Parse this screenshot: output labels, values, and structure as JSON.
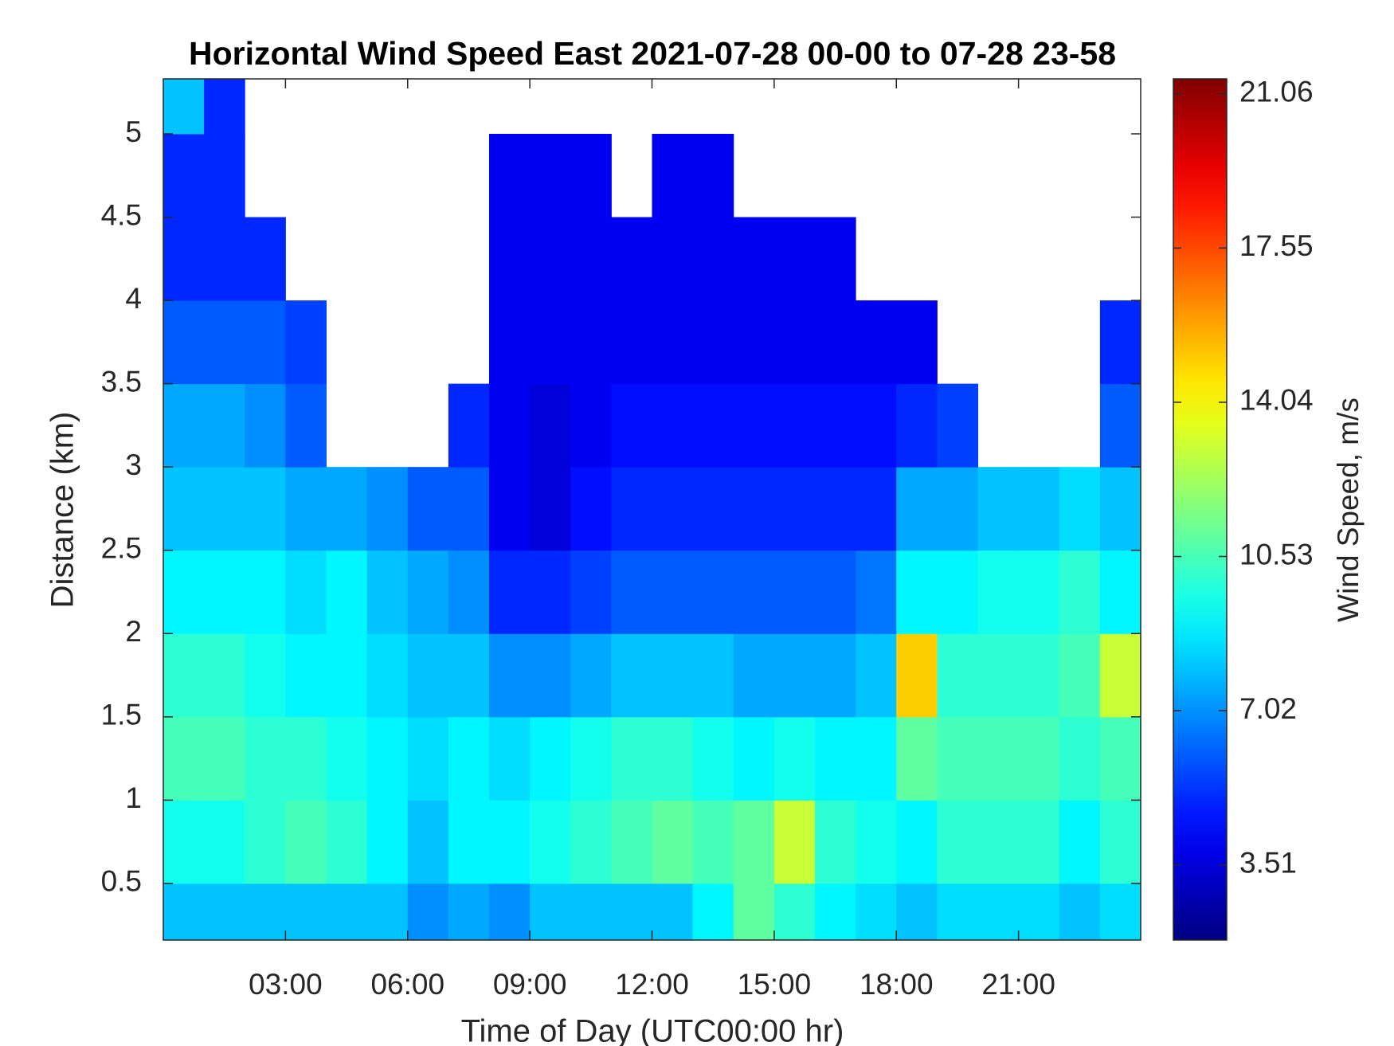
{
  "chart_data": {
    "type": "heatmap",
    "title": "Horizontal Wind Speed East 2021-07-28 00-00 to 07-28 23-58",
    "x_label": "Time of Day (UTC00:00 hr)",
    "y_label": "Distance (km)",
    "colorbar_label": "Wind Speed, m/s",
    "colormap": "jet",
    "x": [
      0.5,
      1.5,
      2.5,
      3.5,
      4.5,
      5.5,
      6.5,
      7.5,
      8.5,
      9.5,
      10.5,
      11.5,
      12.5,
      13.5,
      14.5,
      15.5,
      16.5,
      17.5,
      18.5,
      19.5,
      20.5,
      21.5,
      22.5,
      23.5
    ],
    "y": [
      0.25,
      0.75,
      1.25,
      1.75,
      2.25,
      2.75,
      3.25,
      3.75,
      4.25,
      4.75,
      5.25
    ],
    "values": [
      [
        8,
        8,
        8,
        8,
        8,
        8,
        7,
        7.5,
        7,
        8,
        8,
        8,
        8,
        9,
        11,
        10,
        9,
        8.5,
        8,
        8.5,
        8.5,
        8.5,
        8,
        8.5
      ],
      [
        9.5,
        9.5,
        10,
        10.5,
        10,
        9,
        8,
        9,
        9,
        9.5,
        10,
        10.5,
        11,
        10.5,
        11,
        13,
        10,
        9.5,
        9,
        10,
        10,
        10,
        9,
        10
      ],
      [
        10.5,
        10.5,
        10,
        10,
        9.5,
        9,
        8.5,
        9,
        8.5,
        9,
        9.5,
        10,
        10,
        9.5,
        9,
        9.5,
        9,
        9,
        11,
        10.5,
        10.5,
        10.5,
        10,
        10.5
      ],
      [
        10,
        10,
        9.5,
        9,
        9,
        8.5,
        8,
        8,
        7,
        7,
        7.5,
        8,
        8,
        8,
        7.5,
        7.5,
        7.5,
        8,
        15,
        10,
        10,
        10,
        10.5,
        13
      ],
      [
        9,
        9,
        9,
        8.5,
        9,
        8,
        7.5,
        7,
        5,
        5,
        5.5,
        6,
        6,
        6,
        6,
        6,
        6,
        6.5,
        9,
        9,
        9.5,
        9.5,
        10,
        9
      ],
      [
        8,
        8,
        8,
        7.5,
        7.5,
        7,
        6,
        6,
        4,
        3.5,
        4.5,
        5,
        5,
        5,
        5,
        5,
        5,
        5,
        7.5,
        7.5,
        8,
        8,
        8.5,
        8
      ],
      [
        7.5,
        7.5,
        7,
        6,
        null,
        null,
        null,
        5,
        4,
        3.5,
        4,
        4.5,
        4.5,
        4.5,
        4.5,
        4.5,
        4.5,
        4.5,
        5,
        5.5,
        null,
        null,
        null,
        6
      ],
      [
        6,
        6,
        6,
        5.5,
        null,
        null,
        null,
        null,
        4,
        4,
        4,
        4,
        4,
        4,
        4,
        4,
        4,
        4,
        4,
        null,
        null,
        null,
        null,
        5
      ],
      [
        5,
        5,
        5,
        null,
        null,
        null,
        null,
        null,
        4,
        4,
        4,
        4,
        4,
        4,
        4,
        4,
        4,
        null,
        null,
        null,
        null,
        null,
        null,
        null
      ],
      [
        5,
        5,
        null,
        null,
        null,
        null,
        null,
        null,
        4,
        4,
        4,
        null,
        4,
        4,
        null,
        null,
        null,
        null,
        null,
        null,
        null,
        null,
        null,
        null
      ],
      [
        8,
        5,
        null,
        null,
        null,
        null,
        null,
        null,
        null,
        null,
        null,
        null,
        null,
        null,
        null,
        null,
        null,
        null,
        null,
        null,
        null,
        null,
        null,
        null
      ]
    ],
    "xlim": [
      0,
      24
    ],
    "xticks": [
      {
        "value": 3,
        "label": "03:00"
      },
      {
        "value": 6,
        "label": "06:00"
      },
      {
        "value": 9,
        "label": "09:00"
      },
      {
        "value": 12,
        "label": "12:00"
      },
      {
        "value": 15,
        "label": "15:00"
      },
      {
        "value": 18,
        "label": "18:00"
      },
      {
        "value": 21,
        "label": "21:00"
      }
    ],
    "ylim": [
      0.16,
      5.33
    ],
    "yticks": [
      0.5,
      1,
      1.5,
      2,
      2.5,
      3,
      3.5,
      4,
      4.5,
      5
    ],
    "clim": [
      1.8,
      21.4
    ],
    "cticks": [
      3.51,
      7.02,
      10.53,
      14.04,
      17.55,
      21.06
    ]
  }
}
